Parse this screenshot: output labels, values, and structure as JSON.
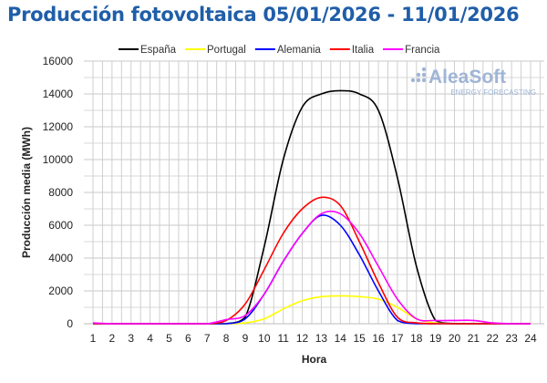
{
  "chart_data": {
    "type": "line",
    "title": "Producción fotovoltaica 05/01/2026 - 11/01/2026",
    "xlabel": "Hora",
    "ylabel": "Producción media (MWh)",
    "ylim": [
      0,
      16000
    ],
    "yticks": [
      0,
      2000,
      4000,
      6000,
      8000,
      10000,
      12000,
      14000,
      16000
    ],
    "x": [
      1,
      2,
      3,
      4,
      5,
      6,
      7,
      8,
      9,
      10,
      11,
      12,
      13,
      14,
      15,
      16,
      17,
      18,
      19,
      20,
      21,
      22,
      23,
      24
    ],
    "grid": true,
    "legend_position": "top",
    "watermark": {
      "brand": "AleaSoft",
      "tagline": "ENERGY FORECASTING"
    },
    "series": [
      {
        "name": "España",
        "color": "#000000",
        "values": [
          0,
          0,
          0,
          0,
          0,
          0,
          0,
          0,
          400,
          4700,
          10000,
          13200,
          14000,
          14200,
          14000,
          13000,
          8900,
          3500,
          200,
          0,
          0,
          0,
          0,
          0
        ]
      },
      {
        "name": "Portugal",
        "color": "#ffff00",
        "values": [
          0,
          0,
          0,
          0,
          0,
          0,
          0,
          0,
          50,
          300,
          900,
          1400,
          1650,
          1700,
          1650,
          1500,
          1000,
          300,
          50,
          0,
          0,
          0,
          0,
          0
        ]
      },
      {
        "name": "Alemania",
        "color": "#0000ff",
        "values": [
          0,
          0,
          0,
          0,
          0,
          0,
          0,
          0,
          300,
          1800,
          3800,
          5500,
          6600,
          6000,
          4200,
          2000,
          200,
          0,
          0,
          0,
          0,
          0,
          0,
          0
        ]
      },
      {
        "name": "Italia",
        "color": "#ff0000",
        "values": [
          0,
          0,
          0,
          0,
          0,
          0,
          0,
          200,
          1200,
          3300,
          5500,
          7000,
          7700,
          7200,
          5000,
          2500,
          400,
          50,
          0,
          0,
          0,
          0,
          0,
          0
        ]
      },
      {
        "name": "Francia",
        "color": "#ff00ff",
        "values": [
          50,
          0,
          0,
          0,
          0,
          0,
          0,
          250,
          500,
          1800,
          3800,
          5500,
          6700,
          6700,
          5500,
          3500,
          1500,
          300,
          200,
          200,
          200,
          50,
          0,
          0
        ]
      }
    ]
  }
}
